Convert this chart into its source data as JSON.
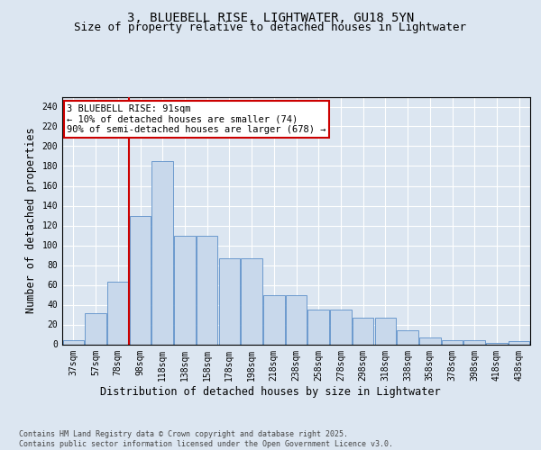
{
  "title_line1": "3, BLUEBELL RISE, LIGHTWATER, GU18 5YN",
  "title_line2": "Size of property relative to detached houses in Lightwater",
  "xlabel": "Distribution of detached houses by size in Lightwater",
  "ylabel": "Number of detached properties",
  "bar_labels": [
    "37sqm",
    "57sqm",
    "78sqm",
    "98sqm",
    "118sqm",
    "138sqm",
    "158sqm",
    "178sqm",
    "198sqm",
    "218sqm",
    "238sqm",
    "258sqm",
    "278sqm",
    "298sqm",
    "318sqm",
    "338sqm",
    "358sqm",
    "378sqm",
    "398sqm",
    "418sqm",
    "438sqm"
  ],
  "bar_values": [
    4,
    31,
    63,
    130,
    185,
    110,
    110,
    87,
    87,
    50,
    50,
    35,
    35,
    27,
    27,
    14,
    7,
    4,
    4,
    1,
    3
  ],
  "bar_color": "#c8d8eb",
  "bar_edge_color": "#5b8fc9",
  "vline_color": "#cc0000",
  "vline_pos": 2.5,
  "annotation_text": "3 BLUEBELL RISE: 91sqm\n← 10% of detached houses are smaller (74)\n90% of semi-detached houses are larger (678) →",
  "annotation_box_color": "#cc0000",
  "ylim": [
    0,
    250
  ],
  "yticks": [
    0,
    20,
    40,
    60,
    80,
    100,
    120,
    140,
    160,
    180,
    200,
    220,
    240
  ],
  "background_color": "#dce6f1",
  "plot_bg_color": "#dce6f1",
  "footer_text": "Contains HM Land Registry data © Crown copyright and database right 2025.\nContains public sector information licensed under the Open Government Licence v3.0.",
  "title_fontsize": 10,
  "subtitle_fontsize": 9,
  "tick_fontsize": 7,
  "label_fontsize": 8.5,
  "annot_fontsize": 7.5,
  "footer_fontsize": 6
}
